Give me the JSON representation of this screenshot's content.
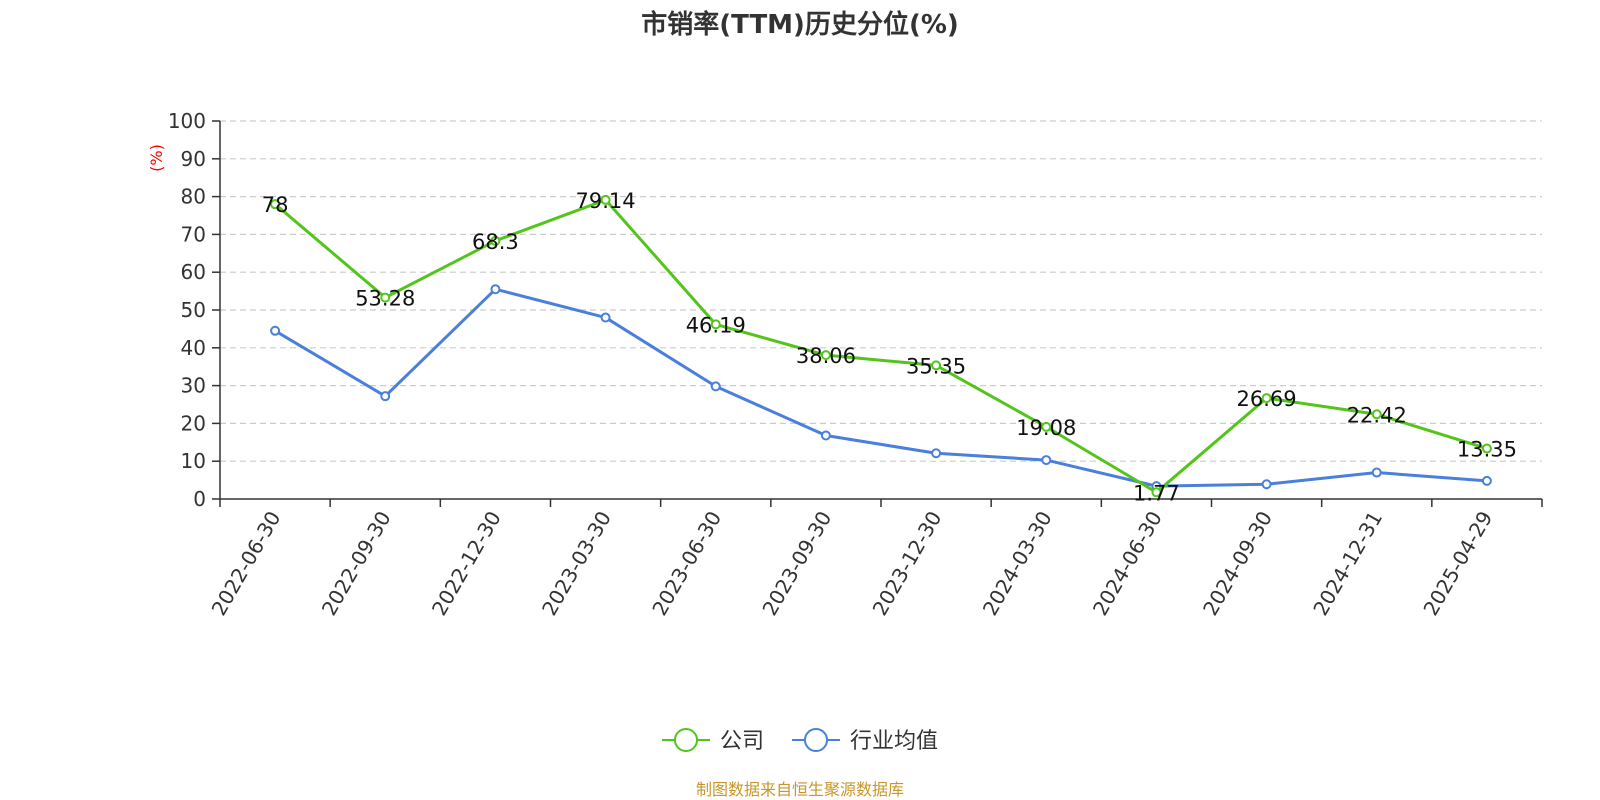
{
  "chart_data": {
    "type": "line",
    "title": "市销率(TTM)历史分位(%)",
    "ylabel": "(%)",
    "xlabel": "",
    "ylim": [
      0,
      100
    ],
    "yticks": [
      0,
      10,
      20,
      30,
      40,
      50,
      60,
      70,
      80,
      90,
      100
    ],
    "grid": true,
    "legend_position": "bottom-center",
    "categories": [
      "2022-06-30",
      "2022-09-30",
      "2022-12-30",
      "2023-03-30",
      "2023-06-30",
      "2023-09-30",
      "2023-12-30",
      "2024-03-30",
      "2024-06-30",
      "2024-09-30",
      "2024-12-31",
      "2025-04-29"
    ],
    "series": [
      {
        "name": "公司",
        "color": "#52c41a",
        "values": [
          78,
          53.28,
          68.3,
          79.14,
          46.19,
          38.06,
          35.35,
          19.08,
          1.77,
          26.69,
          22.42,
          13.35
        ],
        "data_labels": [
          "78",
          "53.28",
          "68.3",
          "79.14",
          "46.19",
          "38.06",
          "35.35",
          "19.08",
          "1.77",
          "26.69",
          "22.42",
          "13.35"
        ]
      },
      {
        "name": "行业均值",
        "color": "#4a7fdc",
        "values": [
          44.5,
          27.2,
          55.5,
          48.0,
          29.8,
          16.8,
          12.1,
          10.3,
          3.4,
          3.9,
          7.0,
          4.8
        ]
      }
    ]
  },
  "footer": {
    "source": "制图数据来自恒生聚源数据库"
  }
}
